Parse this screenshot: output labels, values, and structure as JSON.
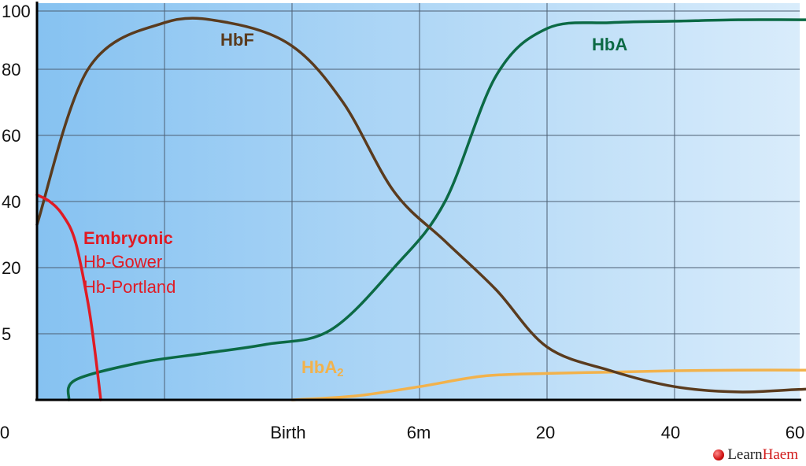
{
  "chart_data": {
    "type": "line",
    "title": "",
    "xlabel": "",
    "ylabel": "",
    "x_ticks": [
      "0",
      "Birth",
      "6m",
      "20",
      "40",
      "60"
    ],
    "y_ticks": [
      "100",
      "80",
      "60",
      "40",
      "20",
      "5"
    ],
    "grid": true,
    "series": [
      {
        "name": "HbF",
        "color": "#5a3b1e",
        "points": [
          [
            0.0,
            33
          ],
          [
            0.4,
            80
          ],
          [
            1.0,
            96
          ],
          [
            1.5,
            96
          ],
          [
            2.0,
            88
          ],
          [
            2.4,
            70
          ],
          [
            2.8,
            43
          ],
          [
            3.2,
            28
          ],
          [
            3.6,
            15
          ],
          [
            4.0,
            4.0
          ],
          [
            4.5,
            2.2
          ],
          [
            5.0,
            1.0
          ],
          [
            5.5,
            0.6
          ],
          [
            6.0,
            0.8
          ],
          [
            6.45,
            0.9
          ],
          [
            6.8,
            0.7
          ]
        ]
      },
      {
        "name": "HbA",
        "color": "#0c6a45",
        "points": [
          [
            0.25,
            0
          ],
          [
            0.3,
            1.5
          ],
          [
            0.8,
            2.8
          ],
          [
            1.3,
            3.5
          ],
          [
            1.8,
            4.2
          ],
          [
            2.3,
            5.8
          ],
          [
            2.8,
            20
          ],
          [
            3.2,
            40
          ],
          [
            3.6,
            78
          ],
          [
            4.0,
            94
          ],
          [
            4.5,
            96
          ],
          [
            5.0,
            96.5
          ],
          [
            5.5,
            97
          ],
          [
            6.0,
            97
          ],
          [
            6.5,
            97
          ],
          [
            6.8,
            96
          ]
        ]
      },
      {
        "name": "HbA₂",
        "color": "#f2b24c",
        "points": [
          [
            2.0,
            0
          ],
          [
            2.5,
            0.3
          ],
          [
            3.0,
            1.0
          ],
          [
            3.5,
            1.8
          ],
          [
            4.0,
            2.0
          ],
          [
            4.5,
            2.1
          ],
          [
            5.0,
            2.2
          ],
          [
            5.5,
            2.25
          ],
          [
            6.0,
            2.25
          ],
          [
            6.5,
            2.2
          ],
          [
            6.8,
            2.15
          ]
        ]
      },
      {
        "name": "Embryonic",
        "color": "#e01b24",
        "points": [
          [
            0.0,
            42
          ],
          [
            0.1,
            40
          ],
          [
            0.2,
            36
          ],
          [
            0.3,
            28
          ],
          [
            0.4,
            12
          ],
          [
            0.45,
            4
          ],
          [
            0.5,
            0
          ]
        ]
      }
    ],
    "annotations": {
      "hbf": "HbF",
      "hba": "HbA",
      "hba2_base": "HbA",
      "hba2_sub": "2",
      "embryonic": "Embryonic",
      "gower": "Hb-Gower",
      "portland": "Hb-Portland"
    }
  },
  "brand": {
    "learn": "Learn",
    "haem": "Haem",
    "colors": {
      "dot": "#d11a1a"
    }
  },
  "colors": {
    "plot_bg_left": "#86c2f1",
    "plot_bg_right": "#d9ecfb",
    "grid": "#4d5f73",
    "axis": "#000000"
  }
}
